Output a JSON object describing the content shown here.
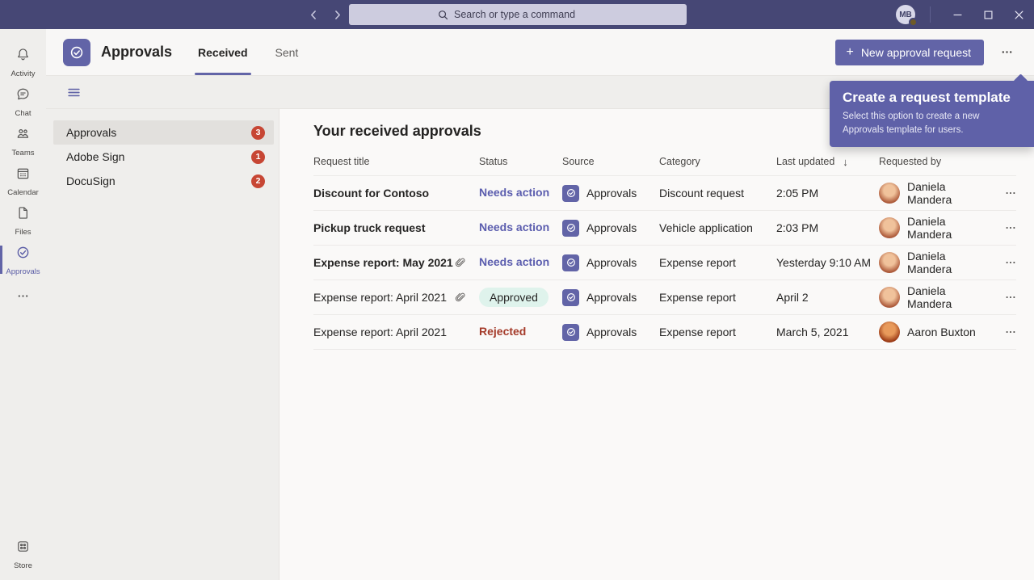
{
  "topbar": {
    "search_placeholder": "Search or type a command",
    "avatar_initials": "MB"
  },
  "header": {
    "app_title": "Approvals",
    "tabs": [
      {
        "label": "Received",
        "active": true
      },
      {
        "label": "Sent",
        "active": false
      }
    ],
    "new_request_label": "New approval request",
    "plus_glyph": "+"
  },
  "tooltip": {
    "title": "Create a request template",
    "body": "Select this option to create a new Approvals template for users."
  },
  "rail": {
    "items": [
      {
        "label": "Activity",
        "icon": "bell-icon"
      },
      {
        "label": "Chat",
        "icon": "chat-icon"
      },
      {
        "label": "Teams",
        "icon": "teams-icon"
      },
      {
        "label": "Calendar",
        "icon": "calendar-icon"
      },
      {
        "label": "Files",
        "icon": "file-icon"
      },
      {
        "label": "Approvals",
        "icon": "approvals-icon",
        "active": true
      },
      {
        "icon": "more-icon",
        "more": true
      },
      {
        "label": "Store",
        "icon": "store-icon",
        "bottom": true
      }
    ]
  },
  "sidebar": {
    "items": [
      {
        "label": "Approvals",
        "badge": "3",
        "selected": true
      },
      {
        "label": "Adobe Sign",
        "badge": "1",
        "selected": false
      },
      {
        "label": "DocuSign",
        "badge": "2",
        "selected": false
      }
    ]
  },
  "main": {
    "title": "Your received approvals",
    "columns": [
      "Request title",
      "Status",
      "Source",
      "Category",
      "Last updated",
      "Requested by"
    ],
    "sorted_column": "Last updated",
    "sort_direction": "descending",
    "rows": [
      {
        "title": "Discount for Contoso",
        "bold": true,
        "attachment": false,
        "status": "Needs action",
        "status_type": "needs-action",
        "source": "Approvals",
        "category": "Discount request",
        "updated": "2:05 PM",
        "requested_by": "Daniela Mandera",
        "avatar_colors": [
          "#F0C29B",
          "#AE5B3B"
        ]
      },
      {
        "title": "Pickup truck request",
        "bold": true,
        "attachment": false,
        "status": "Needs action",
        "status_type": "needs-action",
        "source": "Approvals",
        "category": "Vehicle application",
        "updated": "2:03 PM",
        "requested_by": "Daniela Mandera",
        "avatar_colors": [
          "#F0C29B",
          "#AE5B3B"
        ]
      },
      {
        "title": "Expense report: May 2021",
        "bold": true,
        "attachment": true,
        "status": "Needs action",
        "status_type": "needs-action",
        "source": "Approvals",
        "category": "Expense report",
        "updated": "Yesterday 9:10 AM",
        "requested_by": "Daniela Mandera",
        "avatar_colors": [
          "#F0C29B",
          "#AE5B3B"
        ]
      },
      {
        "title": "Expense report: April 2021",
        "bold": false,
        "attachment": true,
        "status": "Approved",
        "status_type": "approved",
        "source": "Approvals",
        "category": "Expense report",
        "updated": "April 2",
        "requested_by": "Daniela Mandera",
        "avatar_colors": [
          "#F0C29B",
          "#AE5B3B"
        ]
      },
      {
        "title": "Expense report: April 2021",
        "bold": false,
        "attachment": false,
        "status": "Rejected",
        "status_type": "rejected",
        "source": "Approvals",
        "category": "Expense report",
        "updated": "March 5, 2021",
        "requested_by": "Aaron Buxton",
        "avatar_colors": [
          "#E89A5B",
          "#9C3B16"
        ]
      }
    ]
  },
  "colors": {
    "topbar": "#464775",
    "accent": "#6264A7",
    "tooltip_bg": "#5F61A8",
    "badge_red": "#C74634",
    "needs_action": "#5B5DAE",
    "approved_pill_bg": "#DFF3EC",
    "rejected": "#A43A29"
  }
}
